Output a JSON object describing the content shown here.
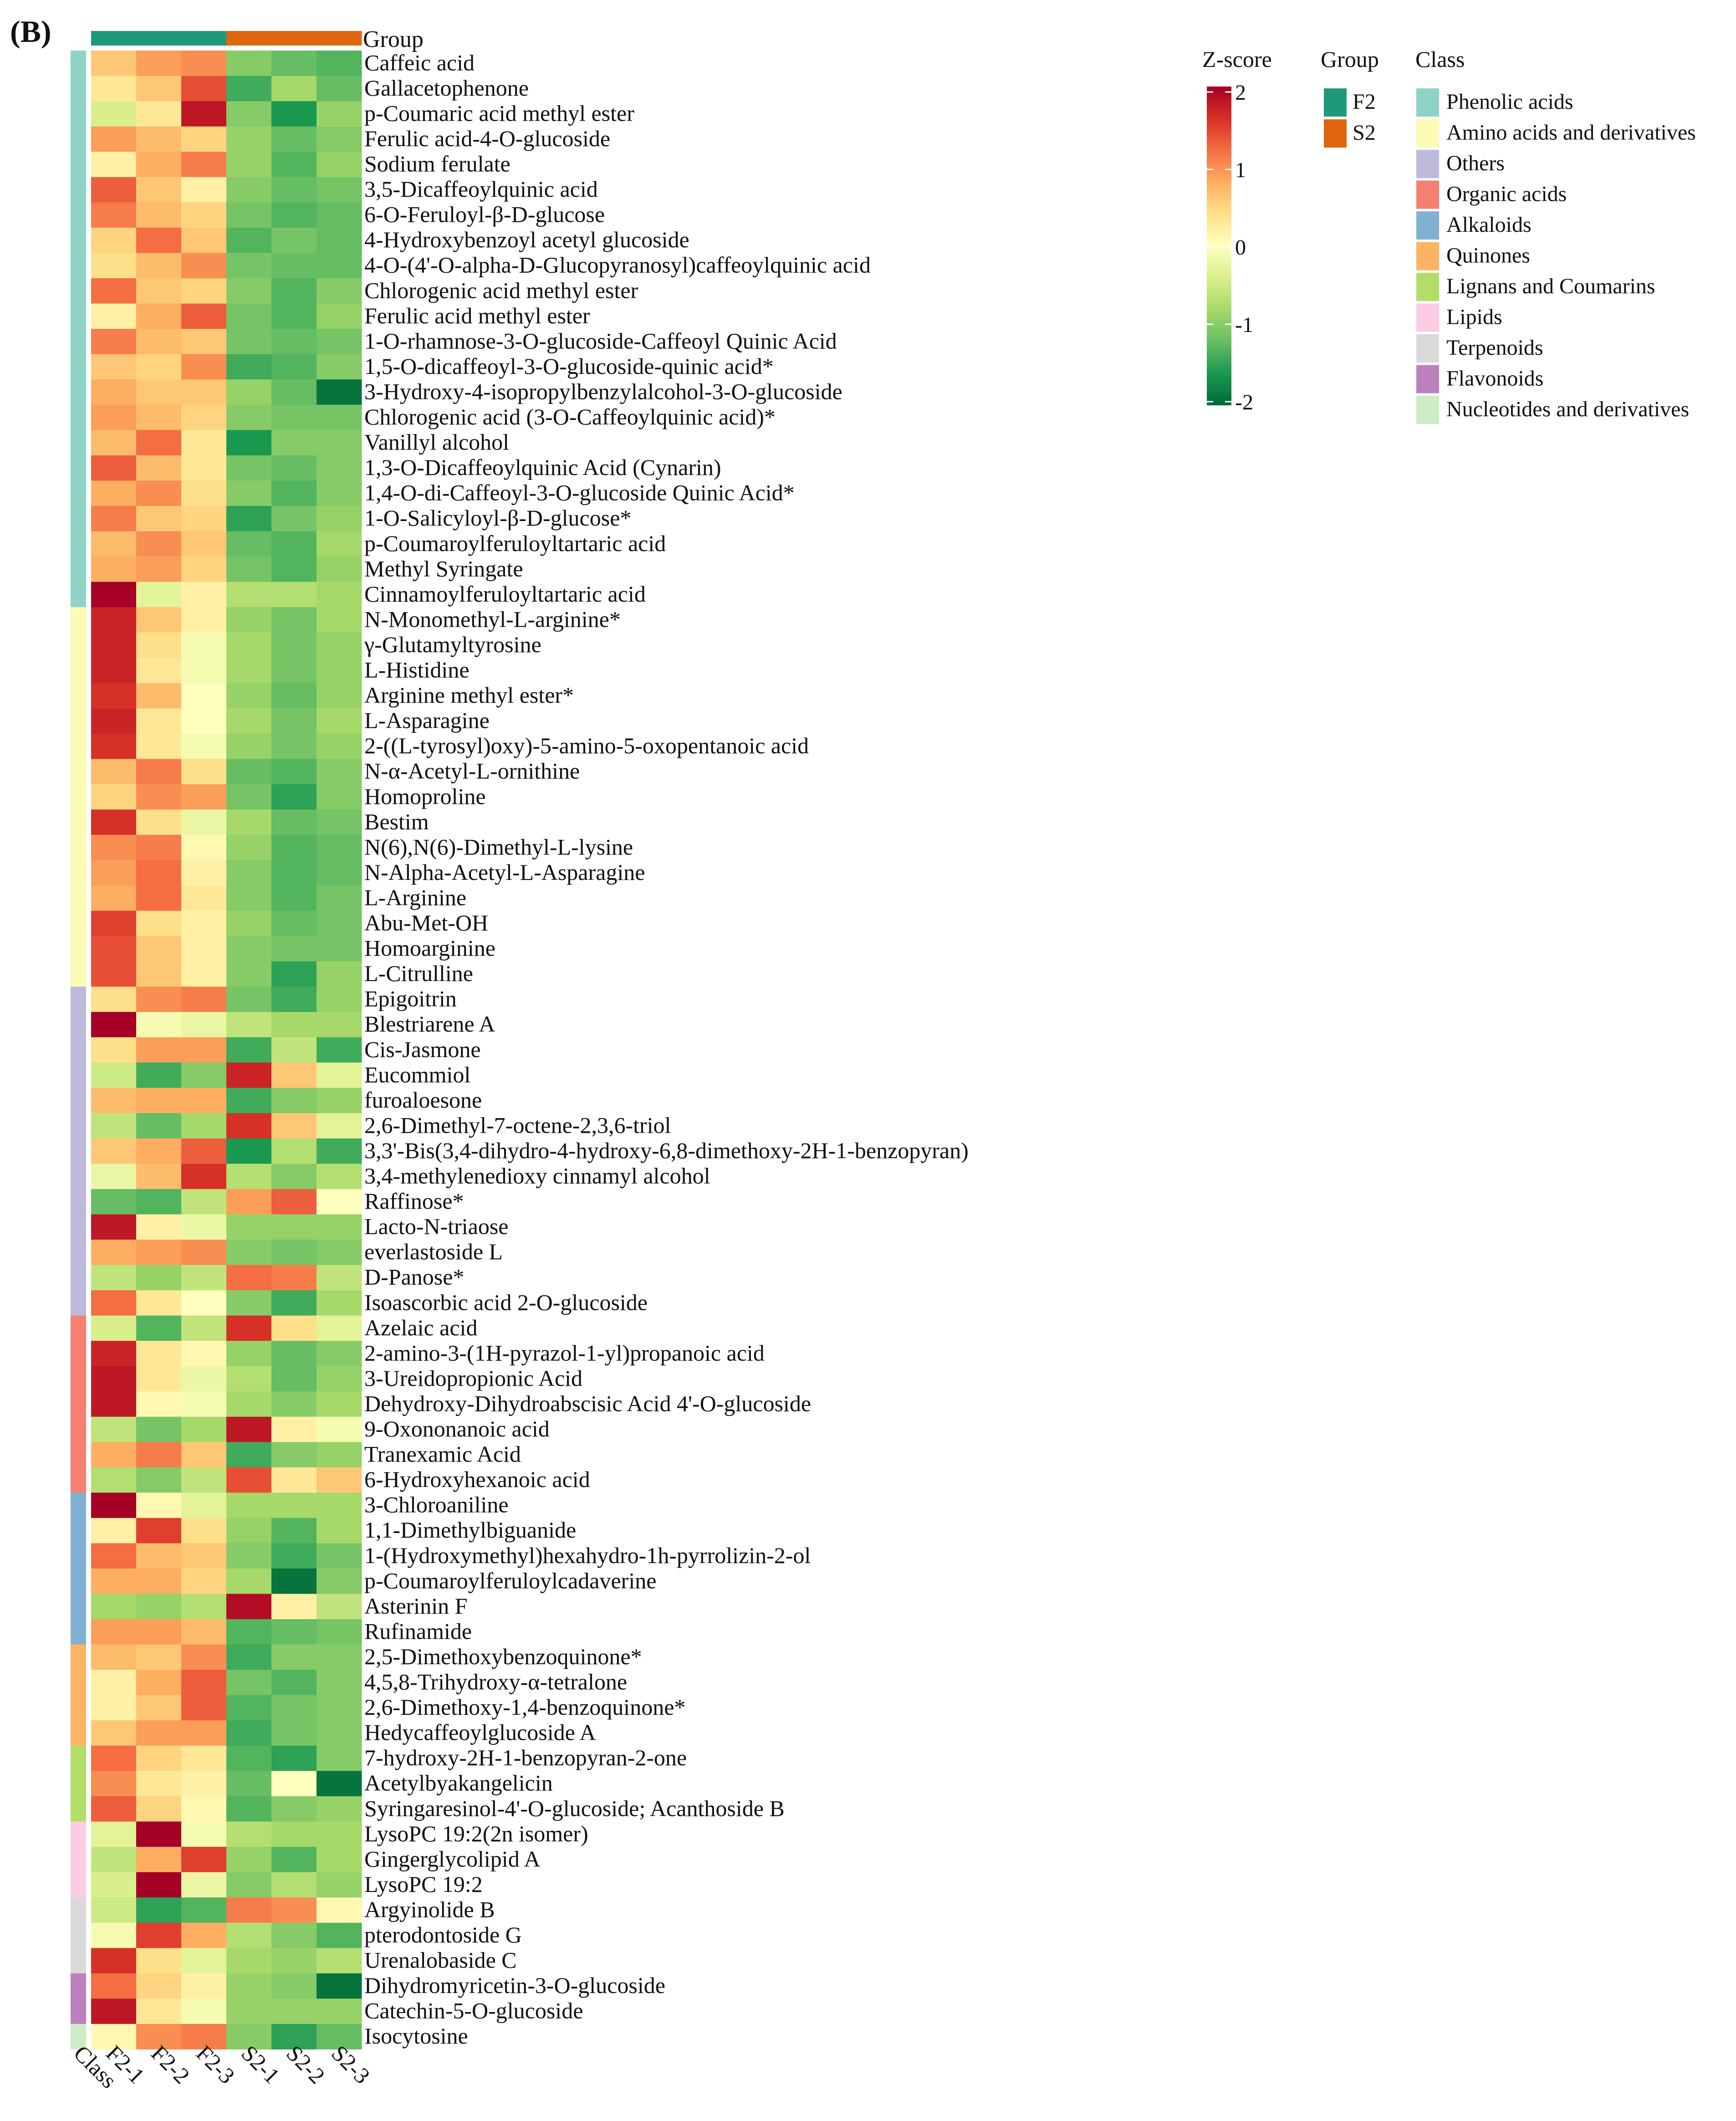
{
  "panel_label": "(B)",
  "chart_data": {
    "type": "heatmap",
    "title": "",
    "columns": [
      "F2-1",
      "F2-2",
      "F2-3",
      "S2-1",
      "S2-2",
      "S2-3"
    ],
    "class_column_label": "Class",
    "group_annotation": {
      "label": "Group",
      "assignment": [
        "F2",
        "F2",
        "F2",
        "S2",
        "S2",
        "S2"
      ]
    },
    "groups": [
      {
        "name": "F2",
        "color": "#1e9a7a"
      },
      {
        "name": "S2",
        "color": "#e0650f"
      }
    ],
    "classes": [
      {
        "name": "Phenolic acids",
        "color": "#8fd3c7"
      },
      {
        "name": "Amino acids and derivatives",
        "color": "#fbfbb4"
      },
      {
        "name": "Others",
        "color": "#bebadb"
      },
      {
        "name": "Organic acids",
        "color": "#f58071"
      },
      {
        "name": "Alkaloids",
        "color": "#80b1d2"
      },
      {
        "name": "Quinones",
        "color": "#fcb462"
      },
      {
        "name": "Lignans and Coumarins",
        "color": "#b2de68"
      },
      {
        "name": "Lipids",
        "color": "#fbcce4"
      },
      {
        "name": "Terpenoids",
        "color": "#d9d9d9"
      },
      {
        "name": "Flavonoids",
        "color": "#bc80bd"
      },
      {
        "name": "Nucleotides and derivatives",
        "color": "#cdebc4"
      }
    ],
    "zscore_legend": {
      "label": "Z-score",
      "ticks": [
        "2",
        "1",
        "0",
        "-1",
        "-2"
      ],
      "range": [
        -2,
        2
      ],
      "colors": [
        "#006837",
        "#1a9850",
        "#66bd63",
        "#a6d96a",
        "#d9ef8b",
        "#ffffbf",
        "#fee08b",
        "#fdae61",
        "#f46d43",
        "#d73027",
        "#a50026"
      ]
    },
    "legend_titles": {
      "group": "Group",
      "class": "Class"
    },
    "rows": [
      {
        "name": "Caffeic acid",
        "class": 0,
        "values": [
          0.6,
          0.9,
          1.0,
          -1.0,
          -1.2,
          -1.3
        ]
      },
      {
        "name": "Gallacetophenone",
        "class": 0,
        "values": [
          0.3,
          0.6,
          1.4,
          -1.4,
          -0.8,
          -1.2
        ]
      },
      {
        "name": "p-Coumaric acid methyl ester",
        "class": 0,
        "values": [
          -0.4,
          0.3,
          1.8,
          -1.0,
          -1.6,
          -0.9
        ]
      },
      {
        "name": "Ferulic acid-4-O-glucoside",
        "class": 0,
        "values": [
          0.9,
          0.7,
          0.5,
          -0.9,
          -1.2,
          -1.0
        ]
      },
      {
        "name": "Sodium ferulate",
        "class": 0,
        "values": [
          0.2,
          0.8,
          1.1,
          -0.9,
          -1.3,
          -0.9
        ]
      },
      {
        "name": "3,5-Dicaffeoylquinic acid",
        "class": 0,
        "values": [
          1.3,
          0.6,
          0.2,
          -1.0,
          -1.2,
          -1.1
        ]
      },
      {
        "name": "6-O-Feruloyl-β-D-glucose",
        "class": 0,
        "values": [
          1.1,
          0.7,
          0.5,
          -1.1,
          -1.3,
          -1.2
        ]
      },
      {
        "name": "4-Hydroxybenzoyl acetyl glucoside",
        "class": 0,
        "values": [
          0.5,
          1.2,
          0.6,
          -1.3,
          -1.1,
          -1.2
        ]
      },
      {
        "name": "4-O-(4'-O-alpha-D-Glucopyranosyl)caffeoylquinic acid",
        "class": 0,
        "values": [
          0.4,
          0.7,
          1.0,
          -1.1,
          -1.2,
          -1.2
        ]
      },
      {
        "name": "Chlorogenic acid methyl ester",
        "class": 0,
        "values": [
          1.2,
          0.6,
          0.5,
          -1.0,
          -1.3,
          -1.0
        ]
      },
      {
        "name": "Ferulic acid methyl ester",
        "class": 0,
        "values": [
          0.2,
          0.8,
          1.3,
          -1.1,
          -1.3,
          -0.9
        ]
      },
      {
        "name": "1-O-rhamnose-3-O-glucoside-Caffeoyl Quinic Acid",
        "class": 0,
        "values": [
          1.1,
          0.7,
          0.6,
          -1.1,
          -1.2,
          -1.1
        ]
      },
      {
        "name": "1,5-O-dicaffeoyl-3-O-glucoside-quinic acid*",
        "class": 0,
        "values": [
          0.6,
          0.5,
          1.0,
          -1.4,
          -1.3,
          -1.0
        ]
      },
      {
        "name": "3-Hydroxy-4-isopropylbenzylalcohol-3-O-glucoside",
        "class": 0,
        "values": [
          0.8,
          0.6,
          0.6,
          -0.9,
          -1.2,
          -1.9
        ]
      },
      {
        "name": "Chlorogenic acid (3-O-Caffeoylquinic acid)*",
        "class": 0,
        "values": [
          0.9,
          0.7,
          0.5,
          -1.0,
          -1.1,
          -1.1
        ]
      },
      {
        "name": "Vanillyl alcohol",
        "class": 0,
        "values": [
          0.7,
          1.2,
          0.3,
          -1.6,
          -1.0,
          -1.0
        ]
      },
      {
        "name": "1,3-O-Dicaffeoylquinic Acid (Cynarin)",
        "class": 0,
        "values": [
          1.3,
          0.7,
          0.3,
          -1.1,
          -1.2,
          -1.0
        ]
      },
      {
        "name": "1,4-O-di-Caffeoyl-3-O-glucoside Quinic Acid*",
        "class": 0,
        "values": [
          0.8,
          1.0,
          0.4,
          -1.0,
          -1.3,
          -1.0
        ]
      },
      {
        "name": "1-O-Salicyloyl-β-D-glucose*",
        "class": 0,
        "values": [
          1.1,
          0.6,
          0.5,
          -1.5,
          -1.1,
          -0.9
        ]
      },
      {
        "name": "p-Coumaroylferuloyltartaric acid",
        "class": 0,
        "values": [
          0.7,
          1.0,
          0.6,
          -1.2,
          -1.3,
          -0.8
        ]
      },
      {
        "name": "Methyl Syringate",
        "class": 0,
        "values": [
          0.8,
          0.9,
          0.5,
          -1.1,
          -1.3,
          -0.9
        ]
      },
      {
        "name": "Cinnamoylferuloyltartaric acid",
        "class": 0,
        "values": [
          2.0,
          -0.3,
          0.2,
          -0.7,
          -0.7,
          -0.8
        ]
      },
      {
        "name": "N-Monomethyl-L-arginine*",
        "class": 1,
        "values": [
          1.7,
          0.6,
          0.2,
          -0.9,
          -1.1,
          -0.8
        ]
      },
      {
        "name": "γ-Glutamyltyrosine",
        "class": 1,
        "values": [
          1.7,
          0.4,
          -0.1,
          -0.8,
          -1.1,
          -0.9
        ]
      },
      {
        "name": "L-Histidine",
        "class": 1,
        "values": [
          1.7,
          0.3,
          -0.1,
          -0.8,
          -1.1,
          -0.9
        ]
      },
      {
        "name": "Arginine methyl ester*",
        "class": 1,
        "values": [
          1.6,
          0.7,
          0.0,
          -0.9,
          -1.2,
          -0.9
        ]
      },
      {
        "name": "L-Asparagine",
        "class": 1,
        "values": [
          1.7,
          0.3,
          0.0,
          -0.8,
          -1.1,
          -0.8
        ]
      },
      {
        "name": "2-((L-tyrosyl)oxy)-5-amino-5-oxopentanoic acid",
        "class": 1,
        "values": [
          1.6,
          0.3,
          -0.1,
          -0.9,
          -1.1,
          -0.9
        ]
      },
      {
        "name": "N-α-Acetyl-L-ornithine",
        "class": 1,
        "values": [
          0.7,
          1.1,
          0.4,
          -1.2,
          -1.3,
          -1.0
        ]
      },
      {
        "name": "Homoproline",
        "class": 1,
        "values": [
          0.5,
          1.0,
          0.9,
          -1.1,
          -1.5,
          -1.0
        ]
      },
      {
        "name": "Bestim",
        "class": 1,
        "values": [
          1.6,
          0.4,
          -0.2,
          -0.8,
          -1.2,
          -1.1
        ]
      },
      {
        "name": "N(6),N(6)-Dimethyl-L-lysine",
        "class": 1,
        "values": [
          1.0,
          1.1,
          0.1,
          -0.9,
          -1.3,
          -1.2
        ]
      },
      {
        "name": "N-Alpha-Acetyl-L-Asparagine",
        "class": 1,
        "values": [
          0.9,
          1.2,
          0.2,
          -1.0,
          -1.3,
          -1.2
        ]
      },
      {
        "name": "L-Arginine",
        "class": 1,
        "values": [
          0.8,
          1.2,
          0.3,
          -1.0,
          -1.3,
          -1.1
        ]
      },
      {
        "name": "Abu-Met-OH",
        "class": 1,
        "values": [
          1.5,
          0.4,
          0.2,
          -0.9,
          -1.2,
          -1.1
        ]
      },
      {
        "name": "Homoarginine",
        "class": 1,
        "values": [
          1.4,
          0.6,
          0.2,
          -1.0,
          -1.1,
          -1.1
        ]
      },
      {
        "name": "L-Citrulline",
        "class": 1,
        "values": [
          1.4,
          0.6,
          0.2,
          -1.0,
          -1.5,
          -0.9
        ]
      },
      {
        "name": "Epigoitrin",
        "class": 2,
        "values": [
          0.4,
          1.0,
          1.1,
          -1.1,
          -1.4,
          -0.9
        ]
      },
      {
        "name": "Blestriarene A",
        "class": 2,
        "values": [
          2.0,
          -0.1,
          -0.2,
          -0.6,
          -0.8,
          -0.8
        ]
      },
      {
        "name": "Cis-Jasmone",
        "class": 2,
        "values": [
          0.4,
          0.9,
          0.9,
          -1.4,
          -0.6,
          -1.4
        ]
      },
      {
        "name": "Eucommiol",
        "class": 2,
        "values": [
          -0.5,
          -1.4,
          -1.0,
          1.7,
          0.6,
          -0.3
        ]
      },
      {
        "name": "furoaloesone",
        "class": 2,
        "values": [
          0.7,
          0.8,
          0.8,
          -1.4,
          -1.0,
          -0.9
        ]
      },
      {
        "name": "2,6-Dimethyl-7-octene-2,3,6-triol",
        "class": 2,
        "values": [
          -0.6,
          -1.2,
          -0.8,
          1.6,
          0.6,
          -0.3
        ]
      },
      {
        "name": "3,3'-Bis(3,4-dihydro-4-hydroxy-6,8-dimethoxy-2H-1-benzopyran)",
        "class": 2,
        "values": [
          0.6,
          0.8,
          1.3,
          -1.6,
          -0.7,
          -1.4
        ]
      },
      {
        "name": "3,4-methylenedioxy cinnamyl alcohol",
        "class": 2,
        "values": [
          -0.2,
          0.7,
          1.6,
          -0.7,
          -1.0,
          -0.7
        ]
      },
      {
        "name": "Raffinose*",
        "class": 2,
        "values": [
          -1.2,
          -1.3,
          -0.6,
          0.9,
          1.3,
          0.0
        ]
      },
      {
        "name": "Lacto-N-triaose",
        "class": 2,
        "values": [
          1.8,
          0.2,
          -0.2,
          -0.9,
          -0.9,
          -0.9
        ]
      },
      {
        "name": "everlastoside L",
        "class": 2,
        "values": [
          0.8,
          0.9,
          1.0,
          -1.0,
          -1.1,
          -1.0
        ]
      },
      {
        "name": "D-Panose*",
        "class": 2,
        "values": [
          -0.6,
          -0.9,
          -0.6,
          1.2,
          1.1,
          -0.6
        ]
      },
      {
        "name": "Isoascorbic acid 2-O-glucoside",
        "class": 2,
        "values": [
          1.2,
          0.3,
          0.0,
          -1.0,
          -1.4,
          -0.8
        ]
      },
      {
        "name": "Azelaic acid",
        "class": 3,
        "values": [
          -0.4,
          -1.3,
          -0.6,
          1.6,
          0.4,
          -0.3
        ]
      },
      {
        "name": "2-amino-3-(1H-pyrazol-1-yl)propanoic acid",
        "class": 3,
        "values": [
          1.7,
          0.3,
          0.1,
          -0.9,
          -1.2,
          -1.0
        ]
      },
      {
        "name": "3-Ureidopropionic Acid",
        "class": 3,
        "values": [
          1.8,
          0.3,
          -0.2,
          -0.7,
          -1.2,
          -0.9
        ]
      },
      {
        "name": "Dehydroxy-Dihydroabscisic Acid 4'-O-glucoside",
        "class": 3,
        "values": [
          1.8,
          0.1,
          -0.1,
          -0.8,
          -1.0,
          -0.8
        ]
      },
      {
        "name": "9-Oxononanoic acid",
        "class": 3,
        "values": [
          -0.6,
          -1.1,
          -0.8,
          1.8,
          0.2,
          -0.1
        ]
      },
      {
        "name": "Tranexamic Acid",
        "class": 3,
        "values": [
          0.8,
          1.1,
          0.6,
          -1.4,
          -1.0,
          -0.9
        ]
      },
      {
        "name": "6-Hydroxyhexanoic acid",
        "class": 3,
        "values": [
          -0.7,
          -1.0,
          -0.6,
          1.4,
          0.3,
          0.6
        ]
      },
      {
        "name": "3-Chloroaniline",
        "class": 4,
        "values": [
          2.0,
          0.1,
          -0.3,
          -0.8,
          -0.8,
          -0.8
        ]
      },
      {
        "name": "1,1-Dimethylbiguanide",
        "class": 4,
        "values": [
          0.2,
          1.5,
          0.4,
          -0.9,
          -1.3,
          -0.8
        ]
      },
      {
        "name": "1-(Hydroxymethyl)hexahydro-1h-pyrrolizin-2-ol",
        "class": 4,
        "values": [
          1.2,
          0.7,
          0.6,
          -1.0,
          -1.4,
          -1.1
        ]
      },
      {
        "name": "p-Coumaroylferuloylcadaverine",
        "class": 4,
        "values": [
          0.8,
          0.8,
          0.5,
          -0.8,
          -1.9,
          -1.0
        ]
      },
      {
        "name": "Asterinin F",
        "class": 4,
        "values": [
          -0.8,
          -0.9,
          -0.7,
          1.9,
          0.2,
          -0.6
        ]
      },
      {
        "name": "Rufinamide",
        "class": 4,
        "values": [
          0.9,
          0.9,
          0.7,
          -1.3,
          -1.2,
          -1.1
        ]
      },
      {
        "name": "2,5-Dimethoxybenzoquinone*",
        "class": 5,
        "values": [
          0.7,
          0.6,
          1.0,
          -1.4,
          -1.0,
          -1.0
        ]
      },
      {
        "name": "4,5,8-Trihydroxy-α-tetralone",
        "class": 5,
        "values": [
          0.2,
          0.8,
          1.3,
          -1.1,
          -1.3,
          -1.0
        ]
      },
      {
        "name": "2,6-Dimethoxy-1,4-benzoquinone*",
        "class": 5,
        "values": [
          0.2,
          0.6,
          1.3,
          -1.3,
          -1.1,
          -1.0
        ]
      },
      {
        "name": "Hedycaffeoylglucoside A",
        "class": 5,
        "values": [
          0.6,
          0.9,
          0.9,
          -1.4,
          -1.1,
          -1.0
        ]
      },
      {
        "name": "7-hydroxy-2H-1-benzopyran-2-one",
        "class": 6,
        "values": [
          1.2,
          0.5,
          0.3,
          -1.3,
          -1.5,
          -1.0
        ]
      },
      {
        "name": "Acetylbyakangelicin",
        "class": 6,
        "values": [
          1.0,
          0.3,
          0.2,
          -1.2,
          0.0,
          -1.9
        ]
      },
      {
        "name": "Syringaresinol-4'-O-glucoside; Acanthoside B",
        "class": 6,
        "values": [
          1.3,
          0.5,
          0.1,
          -1.3,
          -1.0,
          -0.9
        ]
      },
      {
        "name": "LysoPC 19:2(2n isomer)",
        "class": 7,
        "values": [
          -0.3,
          2.0,
          -0.1,
          -0.7,
          -0.8,
          -0.8
        ]
      },
      {
        "name": "Gingerglycolipid A",
        "class": 7,
        "values": [
          -0.6,
          0.8,
          1.5,
          -0.9,
          -1.3,
          -0.8
        ]
      },
      {
        "name": "LysoPC 19:2",
        "class": 7,
        "values": [
          -0.4,
          2.0,
          -0.2,
          -1.0,
          -0.7,
          -0.9
        ]
      },
      {
        "name": "Argyinolide B",
        "class": 8,
        "values": [
          -0.5,
          -1.5,
          -1.3,
          1.1,
          1.0,
          0.1
        ]
      },
      {
        "name": "pterodontoside G",
        "class": 8,
        "values": [
          -0.1,
          1.5,
          0.8,
          -0.7,
          -1.0,
          -1.3
        ]
      },
      {
        "name": "Urenalobaside C",
        "class": 8,
        "values": [
          1.6,
          0.4,
          -0.3,
          -0.8,
          -0.9,
          -0.7
        ]
      },
      {
        "name": "Dihydromyricetin-3-O-glucoside",
        "class": 9,
        "values": [
          1.2,
          0.5,
          0.2,
          -0.9,
          -1.0,
          -1.9
        ]
      },
      {
        "name": "Catechin-5-O-glucoside",
        "class": 9,
        "values": [
          1.8,
          0.3,
          -0.1,
          -0.9,
          -0.9,
          -0.9
        ]
      },
      {
        "name": "Isocytosine",
        "class": 10,
        "values": [
          0.1,
          1.0,
          1.1,
          -1.0,
          -1.5,
          -1.2
        ]
      }
    ]
  }
}
